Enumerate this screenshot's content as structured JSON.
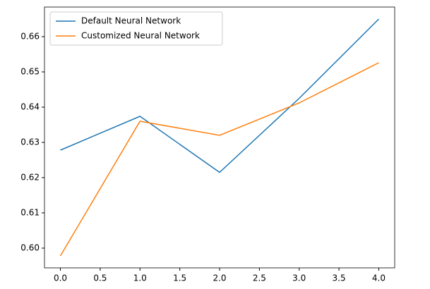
{
  "chart_data": {
    "type": "line",
    "x": [
      0,
      1,
      2,
      3,
      4
    ],
    "series": [
      {
        "name": "Default Neural Network",
        "color": "#1f77b4",
        "values": [
          0.6278,
          0.6374,
          0.6215,
          0.6425,
          0.665
        ]
      },
      {
        "name": "Customized Neural Network",
        "color": "#ff7f0e",
        "values": [
          0.5978,
          0.636,
          0.632,
          0.6412,
          0.6526
        ]
      }
    ],
    "xlim": [
      -0.2,
      4.2
    ],
    "xticks": [
      {
        "value": 0,
        "label": "0.0"
      },
      0.5,
      {
        "value": 1,
        "label": "1.0"
      },
      1.5,
      {
        "value": 2,
        "label": "2.0"
      },
      2.5,
      {
        "value": 3,
        "label": "3.0"
      },
      3.5,
      {
        "value": 4,
        "label": "4.0"
      }
    ],
    "ylim": [
      0.5944,
      0.6684
    ],
    "yticks": [
      {
        "value": 0.6,
        "label": "0.60"
      },
      0.61,
      0.62,
      0.63,
      0.64,
      0.65,
      0.66
    ],
    "grid": false,
    "legend": "upper-left"
  }
}
